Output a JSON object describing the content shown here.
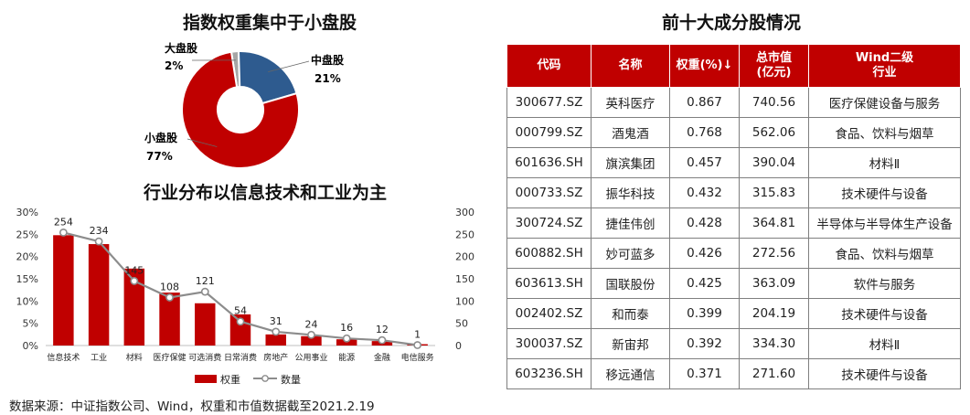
{
  "colors": {
    "red": "#c00000",
    "blue": "#2e5b8f",
    "gray": "#a6a6a6",
    "line": "#8c8c8c"
  },
  "donut": {
    "title": "指数权重集中于小盘股",
    "slices": [
      {
        "name": "大盘股",
        "pct_label": "2%",
        "value": 2,
        "color": "#a6a6a6"
      },
      {
        "name": "中盘股",
        "pct_label": "21%",
        "value": 21,
        "color": "#2e5b8f"
      },
      {
        "name": "小盘股",
        "pct_label": "77%",
        "value": 77,
        "color": "#c00000"
      }
    ]
  },
  "chart_data": {
    "type": "bar",
    "title": "行业分布以信息技术和工业为主",
    "categories": [
      "信息技术",
      "工业",
      "材料",
      "医疗保健",
      "可选消费",
      "日常消费",
      "房地产",
      "公用事业",
      "能源",
      "金融",
      "电信服务"
    ],
    "series": [
      {
        "name": "权重",
        "type": "bar",
        "axis": "left",
        "unit": "%",
        "values": [
          24.8,
          22.8,
          17.3,
          11.9,
          9.5,
          7.0,
          2.5,
          2.1,
          1.4,
          1.0,
          0.3
        ]
      },
      {
        "name": "数量",
        "type": "line",
        "axis": "right",
        "values": [
          254,
          234,
          145,
          108,
          121,
          54,
          31,
          24,
          16,
          12,
          1
        ]
      }
    ],
    "ylim_left": [
      0,
      30
    ],
    "yticks_left": [
      "0%",
      "5%",
      "10%",
      "15%",
      "20%",
      "25%",
      "30%"
    ],
    "ylim_right": [
      0,
      300
    ],
    "yticks_right": [
      "0",
      "50",
      "100",
      "150",
      "200",
      "250",
      "300"
    ],
    "legend": "bottom"
  },
  "table": {
    "title": "前十大成分股情况",
    "headers": [
      "代码",
      "名称",
      "权重(%)↓",
      "总市值\n(亿元)",
      "Wind二级\n行业"
    ],
    "rows": [
      [
        "300677.SZ",
        "英科医疗",
        "0.867",
        "740.56",
        "医疗保健设备与服务"
      ],
      [
        "000799.SZ",
        "酒鬼酒",
        "0.768",
        "562.06",
        "食品、饮料与烟草"
      ],
      [
        "601636.SH",
        "旗滨集团",
        "0.457",
        "390.04",
        "材料Ⅱ"
      ],
      [
        "000733.SZ",
        "振华科技",
        "0.432",
        "315.83",
        "技术硬件与设备"
      ],
      [
        "300724.SZ",
        "捷佳伟创",
        "0.428",
        "364.81",
        "半导体与半导体生产设备"
      ],
      [
        "600882.SH",
        "妙可蓝多",
        "0.426",
        "272.56",
        "食品、饮料与烟草"
      ],
      [
        "603613.SH",
        "国联股份",
        "0.425",
        "363.09",
        "软件与服务"
      ],
      [
        "002402.SZ",
        "和而泰",
        "0.399",
        "204.19",
        "技术硬件与设备"
      ],
      [
        "300037.SZ",
        "新宙邦",
        "0.392",
        "334.30",
        "材料Ⅱ"
      ],
      [
        "603236.SH",
        "移远通信",
        "0.371",
        "271.60",
        "技术硬件与设备"
      ]
    ]
  },
  "source": "数据来源：中证指数公司、Wind，权重和市值数据截至2021.2.19"
}
